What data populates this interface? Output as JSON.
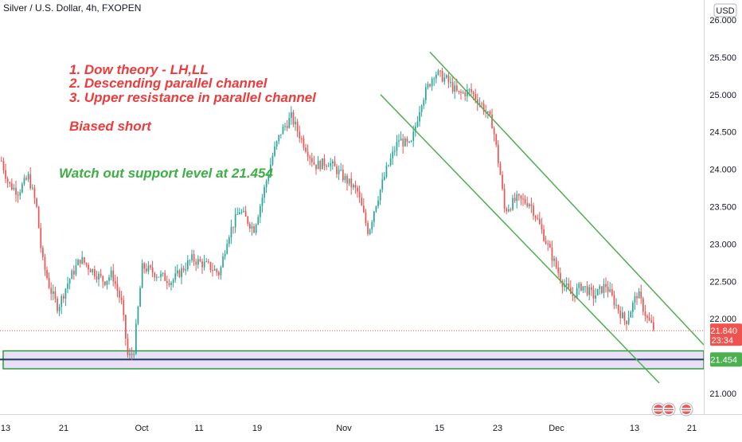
{
  "header": {
    "symbol": "Silver / U.S. Dollar, 4h, FXOPEN",
    "currency": "USD"
  },
  "annotations": {
    "strategy": [
      "1. Dow theory - LH,LL",
      "2. Descending parallel channel",
      "3. Upper resistance in parallel channel"
    ],
    "bias": "Biased short",
    "support_note": "Watch out support level at 21.454"
  },
  "colors": {
    "up": "#26a69a",
    "down": "#ef5350",
    "channel": "#4caf50",
    "support_line": "#1e3a5f",
    "support_zone": "#e1d5f5",
    "price_badge": "#ef5350",
    "support_badge": "#4caf50"
  },
  "chart_data": {
    "type": "candlestick",
    "title": "Silver / U.S. Dollar, 4h, FXOPEN",
    "xlabel": "",
    "ylabel": "",
    "x_tick_labels": [
      "13",
      "21",
      "Oct",
      "11",
      "19",
      "Nov",
      "15",
      "23",
      "Dec",
      "13",
      "21"
    ],
    "y_tick_labels": [
      "21.000",
      "21.500",
      "22.000",
      "22.500",
      "23.000",
      "23.500",
      "24.000",
      "24.500",
      "25.000",
      "25.500",
      "26.000"
    ],
    "ylim": [
      20.6,
      26.1
    ],
    "last_price": 21.84,
    "countdown": "23:34",
    "support_level": 21.454,
    "support_zone": [
      21.33,
      21.57
    ],
    "grid": false,
    "legend": "none",
    "price_path": [
      {
        "x": 0,
        "y": 24.15
      },
      {
        "x": 10,
        "y": 23.8
      },
      {
        "x": 22,
        "y": 23.7
      },
      {
        "x": 35,
        "y": 23.9
      },
      {
        "x": 45,
        "y": 23.5
      },
      {
        "x": 52,
        "y": 22.8
      },
      {
        "x": 62,
        "y": 22.4
      },
      {
        "x": 72,
        "y": 22.15
      },
      {
        "x": 85,
        "y": 22.5
      },
      {
        "x": 100,
        "y": 22.8
      },
      {
        "x": 115,
        "y": 22.65
      },
      {
        "x": 130,
        "y": 22.5
      },
      {
        "x": 140,
        "y": 22.6
      },
      {
        "x": 152,
        "y": 22.2
      },
      {
        "x": 160,
        "y": 21.47
      },
      {
        "x": 167,
        "y": 21.55
      },
      {
        "x": 178,
        "y": 22.7
      },
      {
        "x": 195,
        "y": 22.6
      },
      {
        "x": 215,
        "y": 22.5
      },
      {
        "x": 240,
        "y": 22.8
      },
      {
        "x": 262,
        "y": 22.7
      },
      {
        "x": 275,
        "y": 22.6
      },
      {
        "x": 285,
        "y": 23.1
      },
      {
        "x": 300,
        "y": 23.45
      },
      {
        "x": 318,
        "y": 23.2
      },
      {
        "x": 328,
        "y": 23.6
      },
      {
        "x": 342,
        "y": 24.2
      },
      {
        "x": 352,
        "y": 24.5
      },
      {
        "x": 365,
        "y": 24.7
      },
      {
        "x": 378,
        "y": 24.4
      },
      {
        "x": 395,
        "y": 24.05
      },
      {
        "x": 412,
        "y": 24.1
      },
      {
        "x": 430,
        "y": 23.9
      },
      {
        "x": 448,
        "y": 23.7
      },
      {
        "x": 462,
        "y": 23.15
      },
      {
        "x": 470,
        "y": 23.5
      },
      {
        "x": 485,
        "y": 24.0
      },
      {
        "x": 500,
        "y": 24.4
      },
      {
        "x": 515,
        "y": 24.3
      },
      {
        "x": 528,
        "y": 24.9
      },
      {
        "x": 545,
        "y": 25.3
      },
      {
        "x": 560,
        "y": 25.2
      },
      {
        "x": 575,
        "y": 25.0
      },
      {
        "x": 590,
        "y": 25.05
      },
      {
        "x": 605,
        "y": 24.85
      },
      {
        "x": 618,
        "y": 24.6
      },
      {
        "x": 628,
        "y": 23.9
      },
      {
        "x": 633,
        "y": 23.45
      },
      {
        "x": 648,
        "y": 23.6
      },
      {
        "x": 665,
        "y": 23.55
      },
      {
        "x": 675,
        "y": 23.3
      },
      {
        "x": 690,
        "y": 22.9
      },
      {
        "x": 705,
        "y": 22.5
      },
      {
        "x": 718,
        "y": 22.3
      },
      {
        "x": 730,
        "y": 22.45
      },
      {
        "x": 745,
        "y": 22.3
      },
      {
        "x": 760,
        "y": 22.45
      },
      {
        "x": 772,
        "y": 22.2
      },
      {
        "x": 785,
        "y": 21.95
      },
      {
        "x": 800,
        "y": 22.35
      },
      {
        "x": 812,
        "y": 22.0
      },
      {
        "x": 822,
        "y": 21.84
      }
    ],
    "channel_upper": [
      {
        "x": 540,
        "y": 25.57
      },
      {
        "x": 884,
        "y": 21.65
      }
    ],
    "channel_lower": [
      {
        "x": 478,
        "y": 25.0
      },
      {
        "x": 828,
        "y": 21.14
      }
    ]
  }
}
